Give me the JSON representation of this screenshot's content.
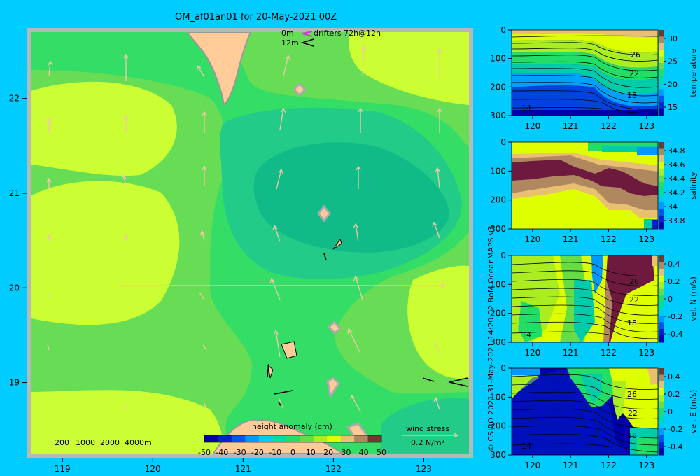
{
  "title": "OM_af01an01 for 20-May-2021 00Z",
  "drifter_legend": {
    "depth_0": "0m",
    "depth_12": "12m",
    "drifter_label": "drifters 72h@12h",
    "icon_0": "purple-arrow-icon",
    "icon_12": "black-arrow-icon"
  },
  "depth_legend": [
    "200",
    "1000",
    "2000",
    "4000m"
  ],
  "colorbar": {
    "title": "height anomaly (cm)",
    "ticks": [
      "-50",
      "-40",
      "-30",
      "-20",
      "-10",
      "0",
      "10",
      "20",
      "30",
      "40",
      "50"
    ],
    "colors": [
      "#0000aa",
      "#0022cc",
      "#0055ee",
      "#0099ff",
      "#00ccee",
      "#00dda0",
      "#22dd66",
      "#66dd44",
      "#aaee22",
      "#ddff00",
      "#e8c070",
      "#b08860",
      "#6e3a2e"
    ]
  },
  "wind_stress": {
    "label": "wind stress",
    "scale": "0.2 N/m²"
  },
  "credit": "© CSIRO 2021   31-May-2021 14:20:02 BoM OceanMAPS v3",
  "chart_data": [
    {
      "type": "heatmap",
      "name": "height anomaly map",
      "xlabel": "",
      "ylabel": "",
      "xlim": [
        118.65,
        123.5
      ],
      "ylim": [
        18.25,
        22.7
      ],
      "xticks": [
        "119",
        "120",
        "121",
        "122",
        "123"
      ],
      "yticks": [
        "19",
        "20",
        "21",
        "22"
      ],
      "field_range_cm": [
        10,
        40
      ]
    },
    {
      "type": "heatmap",
      "name": "temperature section",
      "xticks": [
        "120",
        "121",
        "122",
        "123"
      ],
      "yticks": [
        "0",
        "100",
        "200",
        "300"
      ],
      "ylim": [
        300,
        0
      ],
      "colorbar_label": "temperature",
      "colorbar_ticks": [
        "30",
        "25",
        "20",
        "15"
      ],
      "contour_labels": [
        "26",
        "22",
        "18",
        "14"
      ]
    },
    {
      "type": "heatmap",
      "name": "salinity section",
      "xticks": [
        "120",
        "121",
        "122",
        "123"
      ],
      "yticks": [
        "0",
        "100",
        "200",
        "300"
      ],
      "ylim": [
        300,
        0
      ],
      "colorbar_label": "salinity",
      "colorbar_ticks": [
        "34.8",
        "34.6",
        "34.4",
        "34.2",
        "34",
        "33.8"
      ]
    },
    {
      "type": "heatmap",
      "name": "north velocity section",
      "xticks": [
        "120",
        "121",
        "122",
        "123"
      ],
      "yticks": [
        "0",
        "100",
        "200",
        "300"
      ],
      "ylim": [
        300,
        0
      ],
      "colorbar_label": "vel. N (m/s)",
      "colorbar_ticks": [
        "0.4",
        "0.2",
        "0",
        "-0.2",
        "-0.4"
      ],
      "contour_labels": [
        "26",
        "22",
        "18",
        "14"
      ]
    },
    {
      "type": "heatmap",
      "name": "east velocity section",
      "xticks": [
        "120",
        "121",
        "122",
        "123"
      ],
      "yticks": [
        "0",
        "100",
        "200",
        "300"
      ],
      "ylim": [
        300,
        0
      ],
      "colorbar_label": "vel. E (m/s)",
      "colorbar_ticks": [
        "0.4",
        "0.2",
        "0",
        "-0.2",
        "-0.4"
      ],
      "contour_labels": [
        "26",
        "22",
        "18",
        "14"
      ]
    }
  ]
}
